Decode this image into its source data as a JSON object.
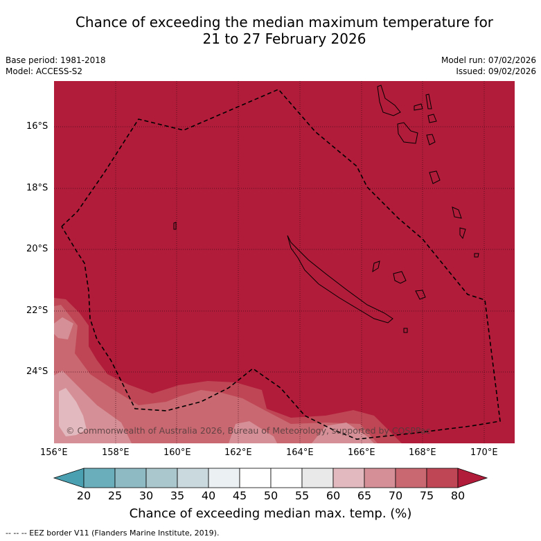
{
  "title_line1": "Chance of exceeding the median maximum temperature for",
  "title_line2": "21 to 27 February 2026",
  "base_period": "Base period: 1981-2018",
  "model": "Model: ACCESS-S2",
  "model_run": "Model run: 07/02/2026",
  "issued": "Issued: 09/02/2026",
  "lat_ticks": [
    "16°S",
    "18°S",
    "20°S",
    "22°S",
    "24°S"
  ],
  "lon_ticks": [
    "156°E",
    "158°E",
    "160°E",
    "162°E",
    "164°E",
    "166°E",
    "168°E",
    "170°E"
  ],
  "credit": "© Commonwealth of Australia 2026, Bureau of Meteorology, supported by COSPPac",
  "colorbar": {
    "ticks": [
      "20",
      "25",
      "30",
      "35",
      "40",
      "45",
      "50",
      "55",
      "60",
      "65",
      "70",
      "75",
      "80"
    ],
    "under_color": "#4aa0b0",
    "over_color": "#b01c3a",
    "colors": [
      "#6aaebb",
      "#8ebac4",
      "#a9c7cc",
      "#cad9de",
      "#ebf0f2",
      "#ffffff",
      "#ffffff",
      "#e9e9e9",
      "#e2b9be",
      "#d59097",
      "#c96870",
      "#bf4655"
    ],
    "label": "Chance of exceeding median max. temp. (%)"
  },
  "footer": "--  --  -- EEZ border V11 (Flanders Marine Institute, 2019)."
}
